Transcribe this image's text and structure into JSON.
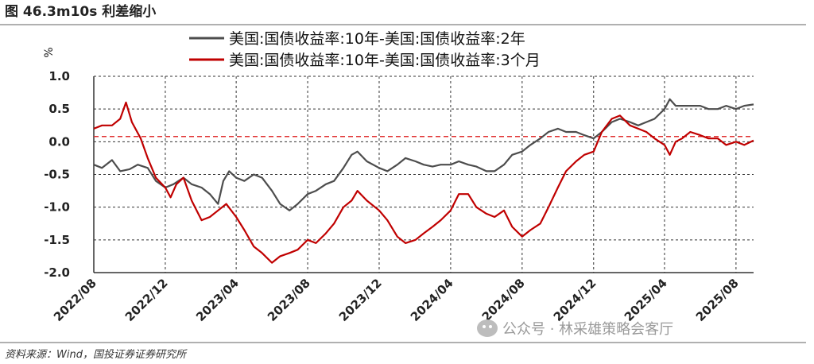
{
  "figure": {
    "title": "图 46.3m10s 利差缩小",
    "source": "资料来源：Wind，国投证券证券研究所",
    "watermark": "公众号 · 林采雄策略会客厅"
  },
  "colors": {
    "series1": "#4d4d4d",
    "series2": "#c00000",
    "ref_line": "#e03030",
    "grid": "#333333"
  },
  "chart_data": {
    "type": "line",
    "ylabel": "%",
    "ylim": [
      -2.0,
      1.0
    ],
    "yticks": [
      "1.0",
      "0.5",
      "0.0",
      "-0.5",
      "-1.0",
      "-1.5",
      "-2.0"
    ],
    "xlim": [
      "2022-08-01",
      "2025-08-31"
    ],
    "xticks": [
      "2022/08",
      "2022/12",
      "2023/04",
      "2023/08",
      "2023/12",
      "2024/04",
      "2024/08",
      "2024/12",
      "2025/04",
      "2025/08"
    ],
    "grid": "horizontal dashed",
    "legend_position": "top",
    "reference_line": 0.08,
    "series": [
      {
        "name": "美国:国债收益率:10年-美国:国债收益率:2年",
        "points": [
          [
            "2022-08-01",
            -0.35
          ],
          [
            "2022-08-15",
            -0.4
          ],
          [
            "2022-09-01",
            -0.28
          ],
          [
            "2022-09-15",
            -0.45
          ],
          [
            "2022-10-01",
            -0.42
          ],
          [
            "2022-10-15",
            -0.35
          ],
          [
            "2022-11-01",
            -0.4
          ],
          [
            "2022-11-15",
            -0.6
          ],
          [
            "2022-12-01",
            -0.7
          ],
          [
            "2022-12-15",
            -0.65
          ],
          [
            "2023-01-01",
            -0.55
          ],
          [
            "2023-01-15",
            -0.65
          ],
          [
            "2023-02-01",
            -0.7
          ],
          [
            "2023-02-15",
            -0.8
          ],
          [
            "2023-03-01",
            -0.95
          ],
          [
            "2023-03-10",
            -0.6
          ],
          [
            "2023-03-20",
            -0.45
          ],
          [
            "2023-04-01",
            -0.55
          ],
          [
            "2023-04-15",
            -0.6
          ],
          [
            "2023-05-01",
            -0.5
          ],
          [
            "2023-05-15",
            -0.55
          ],
          [
            "2023-06-01",
            -0.75
          ],
          [
            "2023-06-15",
            -0.95
          ],
          [
            "2023-07-01",
            -1.05
          ],
          [
            "2023-07-15",
            -0.95
          ],
          [
            "2023-08-01",
            -0.8
          ],
          [
            "2023-08-15",
            -0.75
          ],
          [
            "2023-09-01",
            -0.65
          ],
          [
            "2023-09-15",
            -0.6
          ],
          [
            "2023-10-01",
            -0.4
          ],
          [
            "2023-10-15",
            -0.2
          ],
          [
            "2023-10-25",
            -0.15
          ],
          [
            "2023-11-10",
            -0.3
          ],
          [
            "2023-12-01",
            -0.4
          ],
          [
            "2023-12-15",
            -0.45
          ],
          [
            "2024-01-01",
            -0.35
          ],
          [
            "2024-01-15",
            -0.25
          ],
          [
            "2024-02-01",
            -0.3
          ],
          [
            "2024-02-15",
            -0.35
          ],
          [
            "2024-03-01",
            -0.38
          ],
          [
            "2024-03-15",
            -0.35
          ],
          [
            "2024-04-01",
            -0.35
          ],
          [
            "2024-04-15",
            -0.3
          ],
          [
            "2024-05-01",
            -0.35
          ],
          [
            "2024-05-15",
            -0.38
          ],
          [
            "2024-06-01",
            -0.45
          ],
          [
            "2024-06-15",
            -0.45
          ],
          [
            "2024-07-01",
            -0.35
          ],
          [
            "2024-07-15",
            -0.2
          ],
          [
            "2024-08-01",
            -0.15
          ],
          [
            "2024-08-15",
            -0.05
          ],
          [
            "2024-09-01",
            0.05
          ],
          [
            "2024-09-15",
            0.15
          ],
          [
            "2024-10-01",
            0.2
          ],
          [
            "2024-10-15",
            0.15
          ],
          [
            "2024-11-01",
            0.15
          ],
          [
            "2024-11-15",
            0.1
          ],
          [
            "2024-12-01",
            0.05
          ],
          [
            "2024-12-15",
            0.15
          ],
          [
            "2025-01-01",
            0.3
          ],
          [
            "2025-01-15",
            0.35
          ],
          [
            "2025-02-01",
            0.3
          ],
          [
            "2025-02-15",
            0.25
          ],
          [
            "2025-03-01",
            0.3
          ],
          [
            "2025-03-15",
            0.35
          ],
          [
            "2025-04-01",
            0.5
          ],
          [
            "2025-04-10",
            0.65
          ],
          [
            "2025-04-20",
            0.55
          ],
          [
            "2025-05-01",
            0.55
          ],
          [
            "2025-05-15",
            0.55
          ],
          [
            "2025-06-01",
            0.55
          ],
          [
            "2025-06-15",
            0.5
          ],
          [
            "2025-07-01",
            0.5
          ],
          [
            "2025-07-15",
            0.55
          ],
          [
            "2025-08-01",
            0.5
          ],
          [
            "2025-08-15",
            0.55
          ],
          [
            "2025-08-31",
            0.57
          ]
        ]
      },
      {
        "name": "美国:国债收益率:10年-美国:国债收益率:3个月",
        "points": [
          [
            "2022-08-01",
            0.2
          ],
          [
            "2022-08-15",
            0.25
          ],
          [
            "2022-09-01",
            0.25
          ],
          [
            "2022-09-15",
            0.35
          ],
          [
            "2022-09-25",
            0.6
          ],
          [
            "2022-10-05",
            0.3
          ],
          [
            "2022-10-20",
            0.05
          ],
          [
            "2022-11-01",
            -0.25
          ],
          [
            "2022-11-15",
            -0.55
          ],
          [
            "2022-12-01",
            -0.7
          ],
          [
            "2022-12-10",
            -0.85
          ],
          [
            "2022-12-20",
            -0.65
          ],
          [
            "2023-01-01",
            -0.55
          ],
          [
            "2023-01-15",
            -0.9
          ],
          [
            "2023-02-01",
            -1.2
          ],
          [
            "2023-02-15",
            -1.15
          ],
          [
            "2023-03-01",
            -1.05
          ],
          [
            "2023-03-15",
            -0.95
          ],
          [
            "2023-04-01",
            -1.15
          ],
          [
            "2023-04-15",
            -1.35
          ],
          [
            "2023-05-01",
            -1.6
          ],
          [
            "2023-05-15",
            -1.7
          ],
          [
            "2023-06-01",
            -1.85
          ],
          [
            "2023-06-15",
            -1.75
          ],
          [
            "2023-07-01",
            -1.7
          ],
          [
            "2023-07-15",
            -1.65
          ],
          [
            "2023-08-01",
            -1.5
          ],
          [
            "2023-08-15",
            -1.55
          ],
          [
            "2023-09-01",
            -1.4
          ],
          [
            "2023-09-15",
            -1.25
          ],
          [
            "2023-10-01",
            -1.0
          ],
          [
            "2023-10-15",
            -0.9
          ],
          [
            "2023-10-25",
            -0.75
          ],
          [
            "2023-11-10",
            -0.9
          ],
          [
            "2023-12-01",
            -1.05
          ],
          [
            "2023-12-15",
            -1.2
          ],
          [
            "2024-01-01",
            -1.45
          ],
          [
            "2024-01-15",
            -1.55
          ],
          [
            "2024-02-01",
            -1.5
          ],
          [
            "2024-02-15",
            -1.4
          ],
          [
            "2024-03-01",
            -1.3
          ],
          [
            "2024-03-15",
            -1.2
          ],
          [
            "2024-04-01",
            -1.05
          ],
          [
            "2024-04-15",
            -0.8
          ],
          [
            "2024-05-01",
            -0.8
          ],
          [
            "2024-05-15",
            -1.0
          ],
          [
            "2024-06-01",
            -1.1
          ],
          [
            "2024-06-15",
            -1.15
          ],
          [
            "2024-07-01",
            -1.05
          ],
          [
            "2024-07-15",
            -1.3
          ],
          [
            "2024-08-01",
            -1.45
          ],
          [
            "2024-08-15",
            -1.35
          ],
          [
            "2024-09-01",
            -1.25
          ],
          [
            "2024-09-15",
            -1.0
          ],
          [
            "2024-10-01",
            -0.7
          ],
          [
            "2024-10-15",
            -0.45
          ],
          [
            "2024-11-01",
            -0.3
          ],
          [
            "2024-11-15",
            -0.2
          ],
          [
            "2024-12-01",
            -0.15
          ],
          [
            "2024-12-15",
            0.15
          ],
          [
            "2025-01-01",
            0.35
          ],
          [
            "2025-01-15",
            0.4
          ],
          [
            "2025-02-01",
            0.25
          ],
          [
            "2025-02-15",
            0.2
          ],
          [
            "2025-03-01",
            0.15
          ],
          [
            "2025-03-15",
            0.05
          ],
          [
            "2025-04-01",
            -0.05
          ],
          [
            "2025-04-10",
            -0.2
          ],
          [
            "2025-04-20",
            0.0
          ],
          [
            "2025-05-01",
            0.05
          ],
          [
            "2025-05-15",
            0.15
          ],
          [
            "2025-06-01",
            0.1
          ],
          [
            "2025-06-15",
            0.05
          ],
          [
            "2025-07-01",
            0.05
          ],
          [
            "2025-07-15",
            -0.05
          ],
          [
            "2025-08-01",
            0.0
          ],
          [
            "2025-08-15",
            -0.05
          ],
          [
            "2025-08-31",
            0.02
          ]
        ]
      }
    ]
  }
}
